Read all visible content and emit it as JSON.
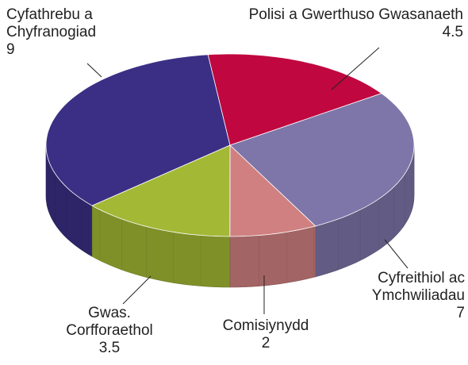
{
  "chart_data": {
    "type": "pie",
    "categories": [
      "Cyfathrebu a Chyfranogiad",
      "Polisi a Gwerthuso Gwasanaeth",
      "Cyfreithiol ac Ymchwiliadau",
      "Comisiynydd",
      "Gwas. Corfforaethol"
    ],
    "values": [
      9,
      4.5,
      7,
      2,
      3.5
    ],
    "colors": [
      "#3b2f85",
      "#c0073f",
      "#7e75a8",
      "#d08080",
      "#a3b835"
    ]
  }
}
